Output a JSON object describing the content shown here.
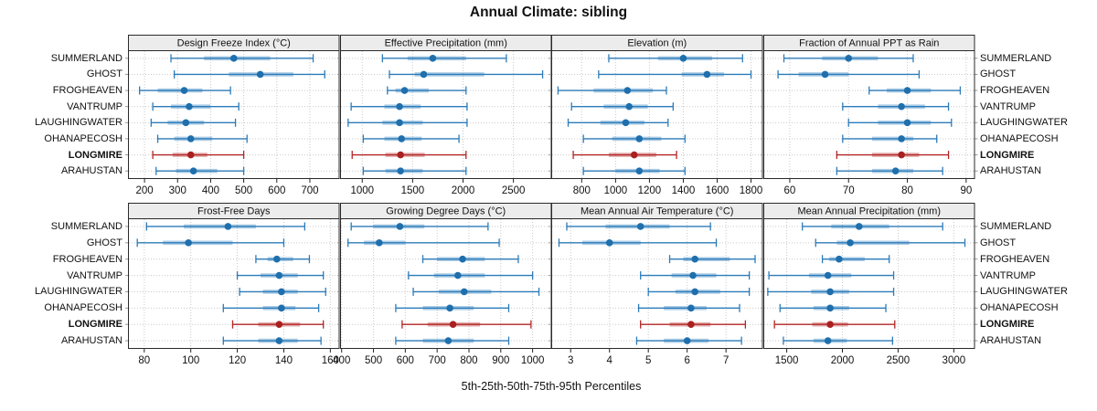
{
  "title": "Annual Climate: sibling",
  "xlabel": "5th-25th-50th-75th-95th Percentiles",
  "stations": [
    "SUMMERLAND",
    "GHOST",
    "FROGHEAVEN",
    "VANTRUMP",
    "LAUGHINGWATER",
    "OHANAPECOSH",
    "LONGMIRE",
    "ARAHUSTAN"
  ],
  "highlight_station": "LONGMIRE",
  "colors": {
    "series_line": "#2b7bba",
    "series_dot": "#1f6fad",
    "series_band": "rgba(43,123,186,0.38)",
    "highlight_line": "#b32424",
    "highlight_dot": "#a82020",
    "highlight_band": "rgba(179,36,36,0.38)",
    "strip_bg": "#ececec",
    "panel_border": "#2a2a2a",
    "grid": "#c9c9c9",
    "tick": "#222222",
    "side_tick": "#999999"
  },
  "chart_data": {
    "type": "dotplot-percentiles",
    "percentiles": [
      5,
      25,
      50,
      75,
      95
    ],
    "layout": {
      "rows": 2,
      "cols": 4,
      "grid": "dotted",
      "legend": "none"
    },
    "panels": [
      {
        "title": "Design Freeze Index (°C)",
        "xlim": [
          150,
          790
        ],
        "ticks": [
          200,
          300,
          400,
          500,
          600,
          700
        ],
        "values": [
          [
            280,
            380,
            470,
            580,
            710
          ],
          [
            290,
            455,
            550,
            650,
            745
          ],
          [
            185,
            240,
            320,
            375,
            460
          ],
          [
            225,
            280,
            335,
            400,
            485
          ],
          [
            220,
            270,
            325,
            380,
            475
          ],
          [
            240,
            290,
            340,
            405,
            510
          ],
          [
            225,
            285,
            340,
            390,
            500
          ],
          [
            235,
            295,
            348,
            420,
            500
          ]
        ]
      },
      {
        "title": "Effective Precipitation (mm)",
        "xlim": [
          780,
          2880
        ],
        "ticks": [
          1000,
          1500,
          2000,
          2500
        ],
        "values": [
          [
            1200,
            1450,
            1700,
            2030,
            2430
          ],
          [
            1270,
            1520,
            1610,
            2210,
            2790
          ],
          [
            1250,
            1330,
            1420,
            1660,
            2030
          ],
          [
            890,
            1220,
            1370,
            1580,
            2040
          ],
          [
            860,
            1200,
            1370,
            1600,
            2040
          ],
          [
            1010,
            1220,
            1390,
            1590,
            1960
          ],
          [
            900,
            1230,
            1380,
            1620,
            2030
          ],
          [
            1010,
            1230,
            1380,
            1600,
            2030
          ]
        ]
      },
      {
        "title": "Elevation (m)",
        "xlim": [
          620,
          1870
        ],
        "ticks": [
          800,
          1000,
          1200,
          1400,
          1600,
          1800
        ],
        "values": [
          [
            960,
            1250,
            1400,
            1570,
            1750
          ],
          [
            900,
            1390,
            1540,
            1640,
            1800
          ],
          [
            660,
            870,
            1070,
            1220,
            1300
          ],
          [
            740,
            930,
            1080,
            1190,
            1340
          ],
          [
            720,
            910,
            1060,
            1170,
            1310
          ],
          [
            810,
            980,
            1140,
            1270,
            1410
          ],
          [
            750,
            960,
            1110,
            1240,
            1360
          ],
          [
            810,
            1000,
            1140,
            1260,
            1410
          ]
        ]
      },
      {
        "title": "Fraction of Annual PPT as Rain",
        "xlim": [
          55.5,
          91.5
        ],
        "ticks": [
          60,
          70,
          80,
          90
        ],
        "values": [
          [
            59,
            65.5,
            70,
            75,
            81
          ],
          [
            58,
            61.5,
            66,
            70,
            82
          ],
          [
            73.5,
            76.5,
            80,
            84,
            89
          ],
          [
            69,
            75,
            79,
            83,
            87
          ],
          [
            70,
            75,
            80,
            84,
            87.5
          ],
          [
            69,
            74,
            79,
            81,
            85
          ],
          [
            68,
            74,
            79,
            82,
            87
          ],
          [
            68,
            74,
            78,
            81,
            86
          ]
        ]
      },
      {
        "title": "Frost-Free Days",
        "xlim": [
          73,
          164
        ],
        "ticks": [
          80,
          100,
          120,
          140,
          160
        ],
        "values": [
          [
            81,
            97,
            116,
            128,
            149
          ],
          [
            77,
            88,
            99,
            118,
            140
          ],
          [
            128,
            133,
            137,
            144,
            151
          ],
          [
            120,
            130,
            138,
            146,
            157
          ],
          [
            121,
            131,
            139,
            146,
            158
          ],
          [
            114,
            131,
            139,
            145,
            155
          ],
          [
            118,
            129,
            138,
            147,
            157
          ],
          [
            114,
            129,
            138,
            146,
            156
          ]
        ]
      },
      {
        "title": "Growing Degree Days (°C)",
        "xlim": [
          395,
          1060
        ],
        "ticks": [
          400,
          500,
          600,
          700,
          800,
          900,
          1000
        ],
        "values": [
          [
            430,
            500,
            583,
            660,
            860
          ],
          [
            420,
            470,
            518,
            600,
            895
          ],
          [
            655,
            700,
            780,
            850,
            955
          ],
          [
            610,
            690,
            765,
            850,
            1000
          ],
          [
            625,
            705,
            785,
            870,
            1020
          ],
          [
            570,
            655,
            740,
            815,
            925
          ],
          [
            590,
            670,
            750,
            835,
            995
          ],
          [
            570,
            655,
            735,
            815,
            925
          ]
        ]
      },
      {
        "title": "Mean Annual Air Temperature (°C)",
        "xlim": [
          2.5,
          7.95
        ],
        "ticks": [
          3,
          4,
          5,
          6,
          7
        ],
        "values": [
          [
            2.9,
            3.9,
            4.8,
            5.55,
            6.6
          ],
          [
            2.7,
            3.3,
            4.0,
            4.8,
            6.75
          ],
          [
            5.55,
            5.9,
            6.2,
            7.1,
            7.75
          ],
          [
            4.8,
            5.6,
            6.15,
            6.75,
            7.6
          ],
          [
            5.0,
            5.7,
            6.2,
            6.85,
            7.6
          ],
          [
            4.75,
            5.4,
            6.1,
            6.5,
            7.35
          ],
          [
            4.8,
            5.55,
            6.1,
            6.6,
            7.5
          ],
          [
            4.7,
            5.4,
            6.0,
            6.55,
            7.4
          ]
        ]
      },
      {
        "title": "Mean Annual Precipitation (mm)",
        "xlim": [
          1290,
          3190
        ],
        "ticks": [
          1500,
          2000,
          2500,
          3000
        ],
        "values": [
          [
            1640,
            1900,
            2150,
            2420,
            2900
          ],
          [
            1760,
            1950,
            2070,
            2600,
            3100
          ],
          [
            1820,
            1880,
            1970,
            2200,
            2420
          ],
          [
            1340,
            1700,
            1870,
            2080,
            2460
          ],
          [
            1330,
            1720,
            1890,
            2060,
            2460
          ],
          [
            1440,
            1740,
            1890,
            2060,
            2390
          ],
          [
            1390,
            1730,
            1890,
            2050,
            2470
          ],
          [
            1470,
            1740,
            1870,
            2040,
            2450
          ]
        ]
      }
    ]
  }
}
